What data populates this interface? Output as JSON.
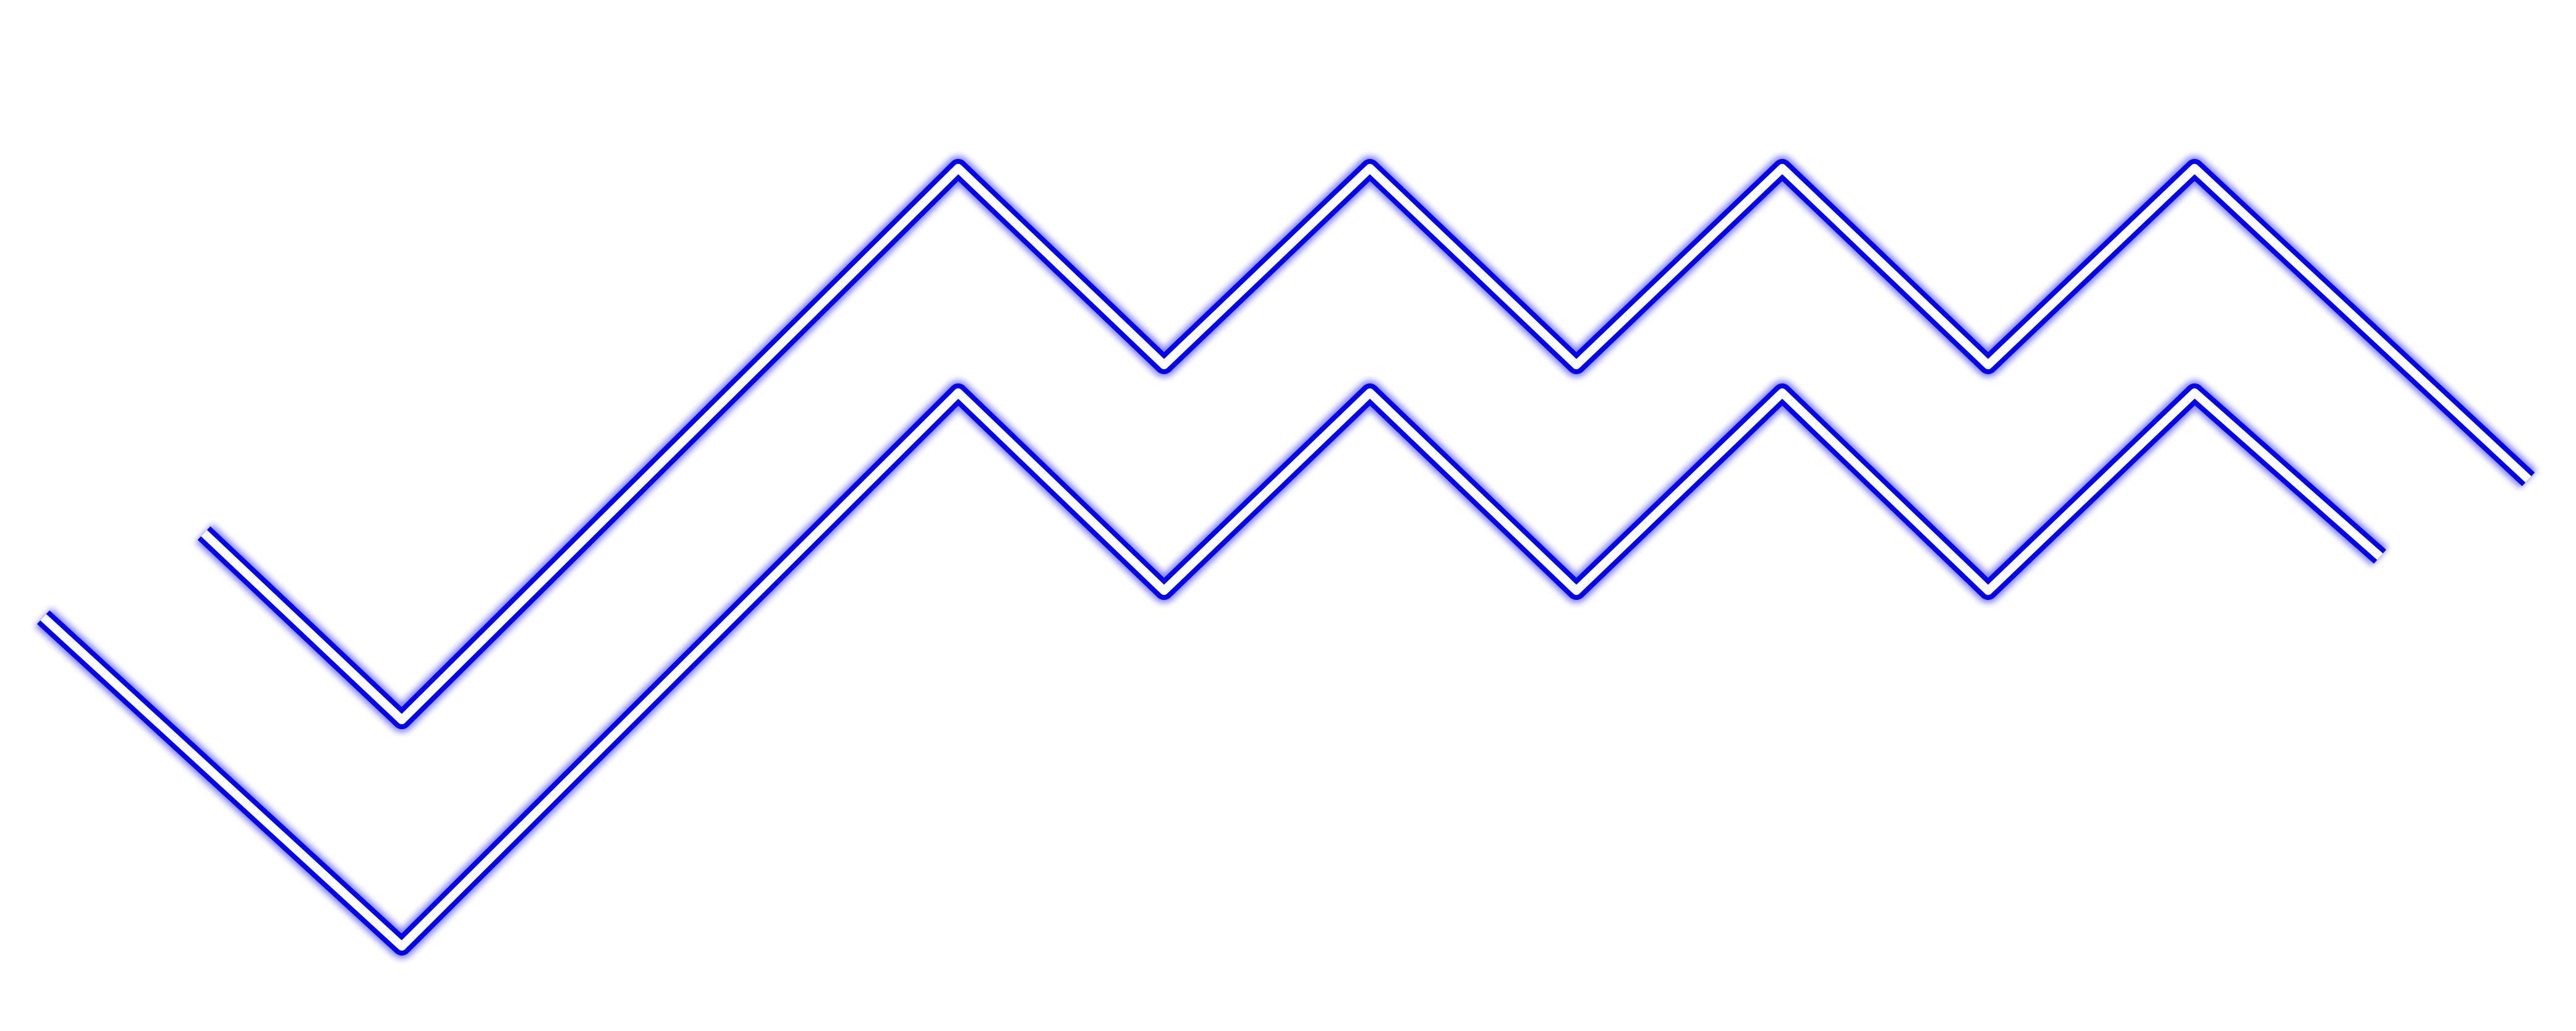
{
  "colors": {
    "background": "#ffffff",
    "stroke": "#1a1aff",
    "stroke_core": "#0000ee",
    "inner": "#ffffff"
  },
  "lines": [
    {
      "name": "upper-zigzag-line"
    },
    {
      "name": "lower-zigzag-line"
    }
  ]
}
